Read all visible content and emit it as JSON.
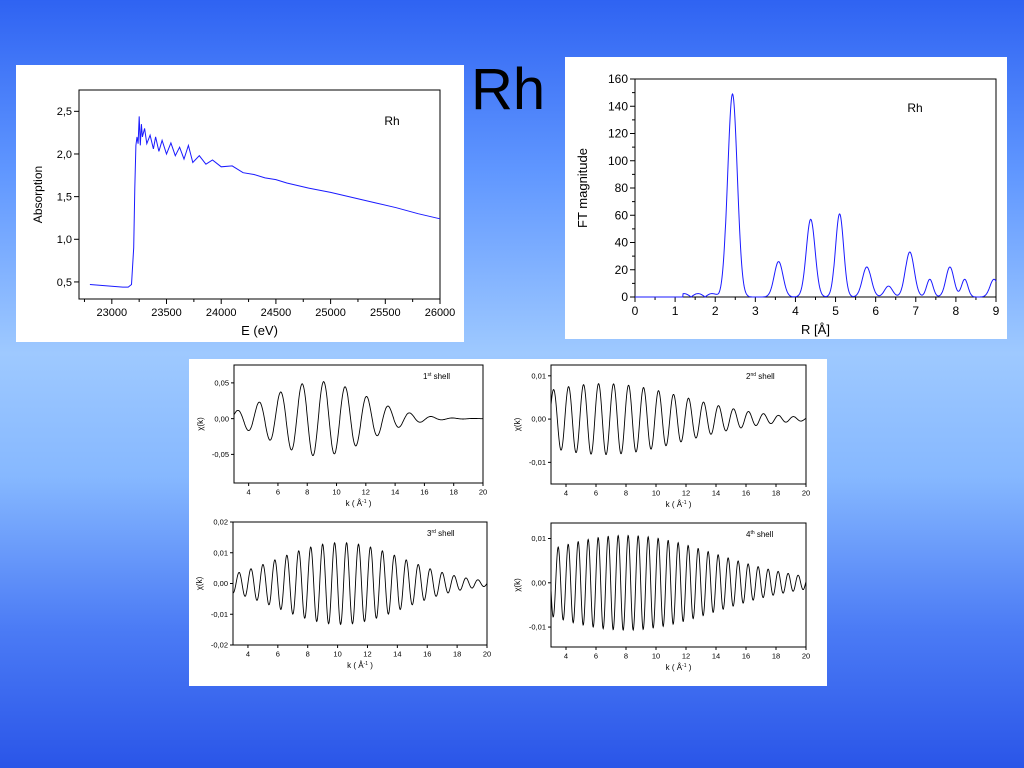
{
  "slide": {
    "title": "Rh"
  },
  "chart_data": [
    {
      "id": "xanes",
      "type": "line",
      "xlabel": "E (eV)",
      "ylabel": "Absorption",
      "annotation": "Rh",
      "xlim": [
        22700,
        26000
      ],
      "ylim": [
        0.3,
        2.75
      ],
      "xticks": [
        23000,
        23500,
        24000,
        24500,
        25000,
        25500,
        26000
      ],
      "yticks": [
        0.5,
        1.0,
        1.5,
        2.0,
        2.5
      ],
      "ytick_labels": [
        "0,5",
        "1,0",
        "1,5",
        "2,0",
        "2,5"
      ],
      "color": "#1a1aff",
      "series": [
        {
          "x": [
            22800,
            22900,
            23000,
            23100,
            23150,
            23180,
            23200,
            23210,
            23220,
            23230,
            23240,
            23250,
            23260,
            23270,
            23280,
            23300,
            23320,
            23350,
            23380,
            23400,
            23430,
            23460,
            23500,
            23540,
            23580,
            23620,
            23660,
            23700,
            23740,
            23800,
            23860,
            23920,
            24000,
            24100,
            24200,
            24300,
            24400,
            24500,
            24600,
            24800,
            25000,
            25200,
            25400,
            25600,
            25800,
            26000
          ],
          "y": [
            0.47,
            0.46,
            0.45,
            0.44,
            0.44,
            0.47,
            0.9,
            1.6,
            2.1,
            2.2,
            2.12,
            2.44,
            2.1,
            2.35,
            2.2,
            2.3,
            2.12,
            2.22,
            2.06,
            2.2,
            2.03,
            2.16,
            2.0,
            2.13,
            1.98,
            2.08,
            1.94,
            2.1,
            1.9,
            1.98,
            1.88,
            1.93,
            1.85,
            1.86,
            1.78,
            1.76,
            1.72,
            1.7,
            1.66,
            1.6,
            1.55,
            1.49,
            1.43,
            1.37,
            1.3,
            1.24
          ]
        }
      ]
    },
    {
      "id": "ft",
      "type": "line",
      "xlabel": "R [Å]",
      "ylabel": "FT magnitude",
      "annotation": "Rh",
      "xlim": [
        0,
        9
      ],
      "ylim": [
        0,
        160
      ],
      "xticks": [
        0,
        1,
        2,
        3,
        4,
        5,
        6,
        7,
        8,
        9
      ],
      "yticks": [
        0,
        20,
        40,
        60,
        80,
        100,
        120,
        140,
        160
      ],
      "color": "#1a1aff",
      "peaks": [
        {
          "r": 2.43,
          "height": 149,
          "width": 0.12
        },
        {
          "r": 3.58,
          "height": 26,
          "width": 0.11
        },
        {
          "r": 4.38,
          "height": 57,
          "width": 0.11
        },
        {
          "r": 5.1,
          "height": 61,
          "width": 0.1
        },
        {
          "r": 5.78,
          "height": 22,
          "width": 0.11
        },
        {
          "r": 6.32,
          "height": 8,
          "width": 0.1
        },
        {
          "r": 6.85,
          "height": 33,
          "width": 0.11
        },
        {
          "r": 7.35,
          "height": 13,
          "width": 0.08
        },
        {
          "r": 7.85,
          "height": 22,
          "width": 0.1
        },
        {
          "r": 8.22,
          "height": 13,
          "width": 0.08
        },
        {
          "r": 8.95,
          "height": 13,
          "width": 0.1
        }
      ]
    },
    {
      "id": "shell1",
      "type": "line",
      "label": "1st shell",
      "label_base": "1",
      "label_sup": "st",
      "label_rest": " shell",
      "xlabel": "k ( Å",
      "xlabel_sup": "-1",
      "xlabel_end": " )",
      "ylabel": "χ(k)",
      "xlim": [
        3,
        20
      ],
      "ylim": [
        -0.09,
        0.075
      ],
      "xticks": [
        4,
        6,
        8,
        10,
        12,
        14,
        16,
        18,
        20
      ],
      "yticks": [
        -0.05,
        0.0,
        0.05
      ],
      "ytick_labels": [
        "-0,05",
        "0,00",
        "0,05"
      ],
      "oscillation": {
        "amplitude": 0.052,
        "center_k": 8.8,
        "envelope_width": 3.2,
        "cycles_per_k": 0.68,
        "phase": 0.3
      }
    },
    {
      "id": "shell2",
      "type": "line",
      "label": "2nd shell",
      "label_base": "2",
      "label_sup": "nd",
      "label_rest": " shell",
      "xlabel": "k ( Å",
      "xlabel_sup": "-1",
      "xlabel_end": " )",
      "ylabel": "χ(k)",
      "xlim": [
        3,
        20
      ],
      "ylim": [
        -0.015,
        0.0125
      ],
      "xticks": [
        4,
        6,
        8,
        10,
        12,
        14,
        16,
        18,
        20
      ],
      "yticks": [
        -0.01,
        0.0,
        0.01
      ],
      "ytick_labels": [
        "-0,01",
        "0,00",
        "0,01"
      ],
      "oscillation": {
        "amplitude": 0.0082,
        "center_k": 6.5,
        "envelope_width": 5.5,
        "cycles_per_k": 1.0,
        "phase": 0.5
      }
    },
    {
      "id": "shell3",
      "type": "line",
      "label": "3rd shell",
      "label_base": "3",
      "label_sup": "rd",
      "label_rest": " shell",
      "xlabel": "k ( Å",
      "xlabel_sup": "-1",
      "xlabel_end": " )",
      "ylabel": "χ(k)",
      "xlim": [
        3,
        20
      ],
      "ylim": [
        -0.02,
        0.02
      ],
      "xticks": [
        4,
        6,
        8,
        10,
        12,
        14,
        16,
        18,
        20
      ],
      "yticks": [
        -0.02,
        -0.01,
        0.0,
        0.01,
        0.02
      ],
      "ytick_labels": [
        "-0,02",
        "-0,01",
        "0,00",
        "0,01",
        "0,02"
      ],
      "oscillation": {
        "amplitude": 0.0133,
        "center_k": 10.2,
        "envelope_width": 4.2,
        "cycles_per_k": 1.25,
        "phase": 0.0
      }
    },
    {
      "id": "shell4",
      "type": "line",
      "label": "4th shell",
      "label_base": "4",
      "label_sup": "th",
      "label_rest": " shell",
      "xlabel": "k ( Å",
      "xlabel_sup": "-1",
      "xlabel_end": " )",
      "ylabel": "χ(k)",
      "xlim": [
        3,
        20
      ],
      "ylim": [
        -0.0145,
        0.0135
      ],
      "xticks": [
        4,
        6,
        8,
        10,
        12,
        14,
        16,
        18,
        20
      ],
      "yticks": [
        -0.01,
        0.0,
        0.01
      ],
      "ytick_labels": [
        "-0,01",
        "0,00",
        "0,01"
      ],
      "oscillation": {
        "amplitude": 0.0107,
        "center_k": 8.0,
        "envelope_width": 6.0,
        "cycles_per_k": 1.5,
        "phase": 0.2
      }
    }
  ]
}
